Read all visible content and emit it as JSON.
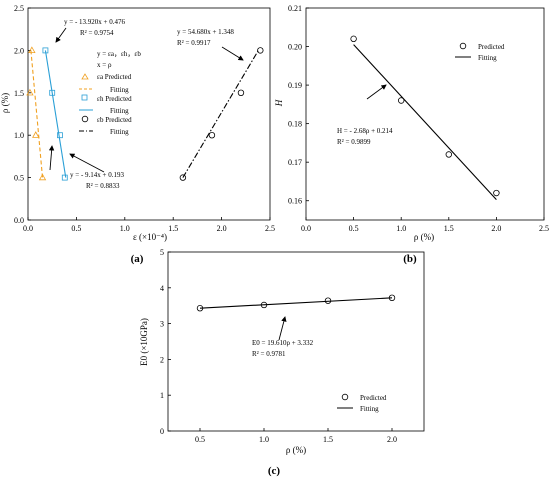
{
  "chart_data": [
    {
      "type": "scatter",
      "panel_label": "(a)",
      "xlabel": "ε (×10⁻⁴)",
      "ylabel": "ρ (%)",
      "xlim": [
        0,
        2.5
      ],
      "ylim": [
        0,
        2.5
      ],
      "xticks": [
        "0.0",
        "0.5",
        "1.0",
        "1.5",
        "2.0",
        "2.5"
      ],
      "yticks": [
        "0.0",
        "0.5",
        "1.0",
        "1.5",
        "2.0",
        "2.5"
      ],
      "legend_header": [
        "y = εa，εh，εb",
        "x = ρ"
      ],
      "series": [
        {
          "name": "εa Predicted",
          "fit_name": "Fitting",
          "marker": "triangle",
          "color": "#f0a020",
          "fit_style": "dashed",
          "points": [
            [
              0.04,
              2.0
            ],
            [
              0.02,
              1.5
            ],
            [
              0.08,
              1.0
            ],
            [
              0.15,
              0.5
            ]
          ],
          "fit_line": [
            [
              0.03,
              2.0
            ],
            [
              0.15,
              0.5
            ]
          ],
          "equation": "y = - 9.14x + 0.193",
          "r2": "R² = 0.8833"
        },
        {
          "name": "εh Predicted",
          "fit_name": "Fitting",
          "marker": "square",
          "color": "#2a9fd6",
          "fit_style": "solid",
          "points": [
            [
              0.18,
              2.0
            ],
            [
              0.25,
              1.5
            ],
            [
              0.33,
              1.0
            ],
            [
              0.38,
              0.5
            ]
          ],
          "fit_line": [
            [
              0.18,
              2.0
            ],
            [
              0.39,
              0.5
            ]
          ],
          "equation": "y = - 13.920x + 0.476",
          "r2": "R² = 0.9754"
        },
        {
          "name": "εb Predicted",
          "fit_name": "Fitting",
          "marker": "circle",
          "color": "#000000",
          "fit_style": "dashdot",
          "points": [
            [
              1.6,
              0.5
            ],
            [
              1.9,
              1.0
            ],
            [
              2.2,
              1.5
            ],
            [
              2.4,
              2.0
            ]
          ],
          "fit_line": [
            [
              1.6,
              0.5
            ],
            [
              2.38,
              2.0
            ]
          ],
          "equation": "y = 54.680x + 1.348",
          "r2": "R² = 0.9917"
        }
      ]
    },
    {
      "type": "scatter",
      "panel_label": "(b)",
      "xlabel": "ρ (%)",
      "ylabel": "H",
      "xlim": [
        0,
        2.5
      ],
      "ylim": [
        0.155,
        0.21
      ],
      "xticks": [
        "0.0",
        "0.5",
        "1.0",
        "1.5",
        "2.0",
        "2.5"
      ],
      "yticks": [
        "0.16",
        "0.17",
        "0.18",
        "0.19",
        "0.20",
        "0.21"
      ],
      "legend": [
        "Predicted",
        "Fitting"
      ],
      "points": [
        [
          0.5,
          0.202
        ],
        [
          1.0,
          0.186
        ],
        [
          1.5,
          0.172
        ],
        [
          2.0,
          0.162
        ]
      ],
      "fit_line": [
        [
          0.5,
          0.2005
        ],
        [
          2.0,
          0.1603
        ]
      ],
      "equation": "H = - 2.68ρ + 0.214",
      "r2": "R² = 0.9899"
    },
    {
      "type": "scatter",
      "panel_label": "(c)",
      "xlabel": "ρ (%)",
      "ylabel": "E0 (×10GPa)",
      "xlim": [
        0.25,
        2.25
      ],
      "ylim": [
        0,
        5
      ],
      "xticks": [
        "0.5",
        "1.0",
        "1.5",
        "2.0"
      ],
      "yticks": [
        "0",
        "1",
        "2",
        "3",
        "4",
        "5"
      ],
      "legend": [
        "Predicted",
        "Fitting"
      ],
      "points": [
        [
          0.5,
          3.43
        ],
        [
          1.0,
          3.52
        ],
        [
          1.5,
          3.64
        ],
        [
          2.0,
          3.72
        ]
      ],
      "fit_line": [
        [
          0.5,
          3.43
        ],
        [
          2.0,
          3.72
        ]
      ],
      "equation": "E0 = 19.610ρ + 3.332",
      "r2": "R² = 0.9781"
    }
  ]
}
